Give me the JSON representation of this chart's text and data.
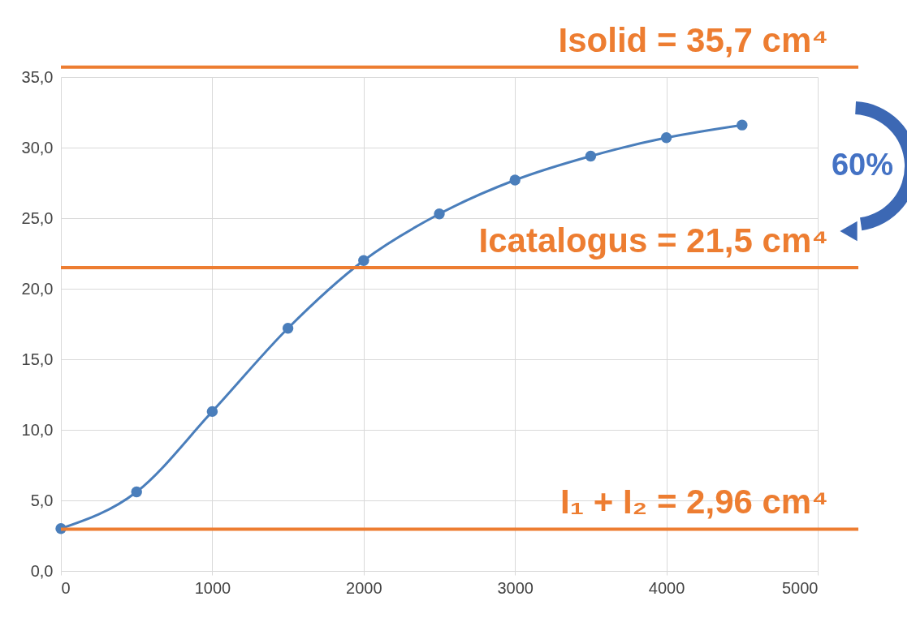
{
  "chart_data": {
    "type": "line",
    "x": [
      0,
      500,
      1000,
      1500,
      2000,
      2500,
      3000,
      3500,
      4000,
      4500
    ],
    "series": [
      {
        "color": "#4a7ebb",
        "values": [
          3.0,
          5.6,
          11.3,
          17.2,
          22.0,
          25.3,
          27.7,
          29.4,
          30.7,
          31.6
        ]
      }
    ],
    "xlim": [
      0,
      5000
    ],
    "xticks": [
      0,
      1000,
      2000,
      3000,
      4000,
      5000
    ],
    "ylim": [
      0,
      35
    ],
    "yticks": [
      {
        "value": 0,
        "label": "0,0"
      },
      {
        "value": 5,
        "label": "5,0"
      },
      {
        "value": 10,
        "label": "10,0"
      },
      {
        "value": 15,
        "label": "15,0"
      },
      {
        "value": 20,
        "label": "20,0"
      },
      {
        "value": 25,
        "label": "25,0"
      },
      {
        "value": 30,
        "label": "30,0"
      },
      {
        "value": 35,
        "label": "35,0"
      }
    ],
    "grid": true,
    "marker": "circle",
    "line_style": "solid",
    "ref_lines": [
      {
        "axis": "y",
        "value": 35.7,
        "label": "Isolid = 35,7 cm⁴",
        "color": "#ed7d31"
      },
      {
        "axis": "y",
        "value": 21.5,
        "label": "Icatalogus = 21,5 cm⁴",
        "color": "#ed7d31"
      },
      {
        "axis": "y",
        "value": 2.96,
        "label": "I₁ + I₂ = 2,96 cm⁴",
        "color": "#ed7d31"
      }
    ],
    "annotations": [
      "60%"
    ]
  }
}
